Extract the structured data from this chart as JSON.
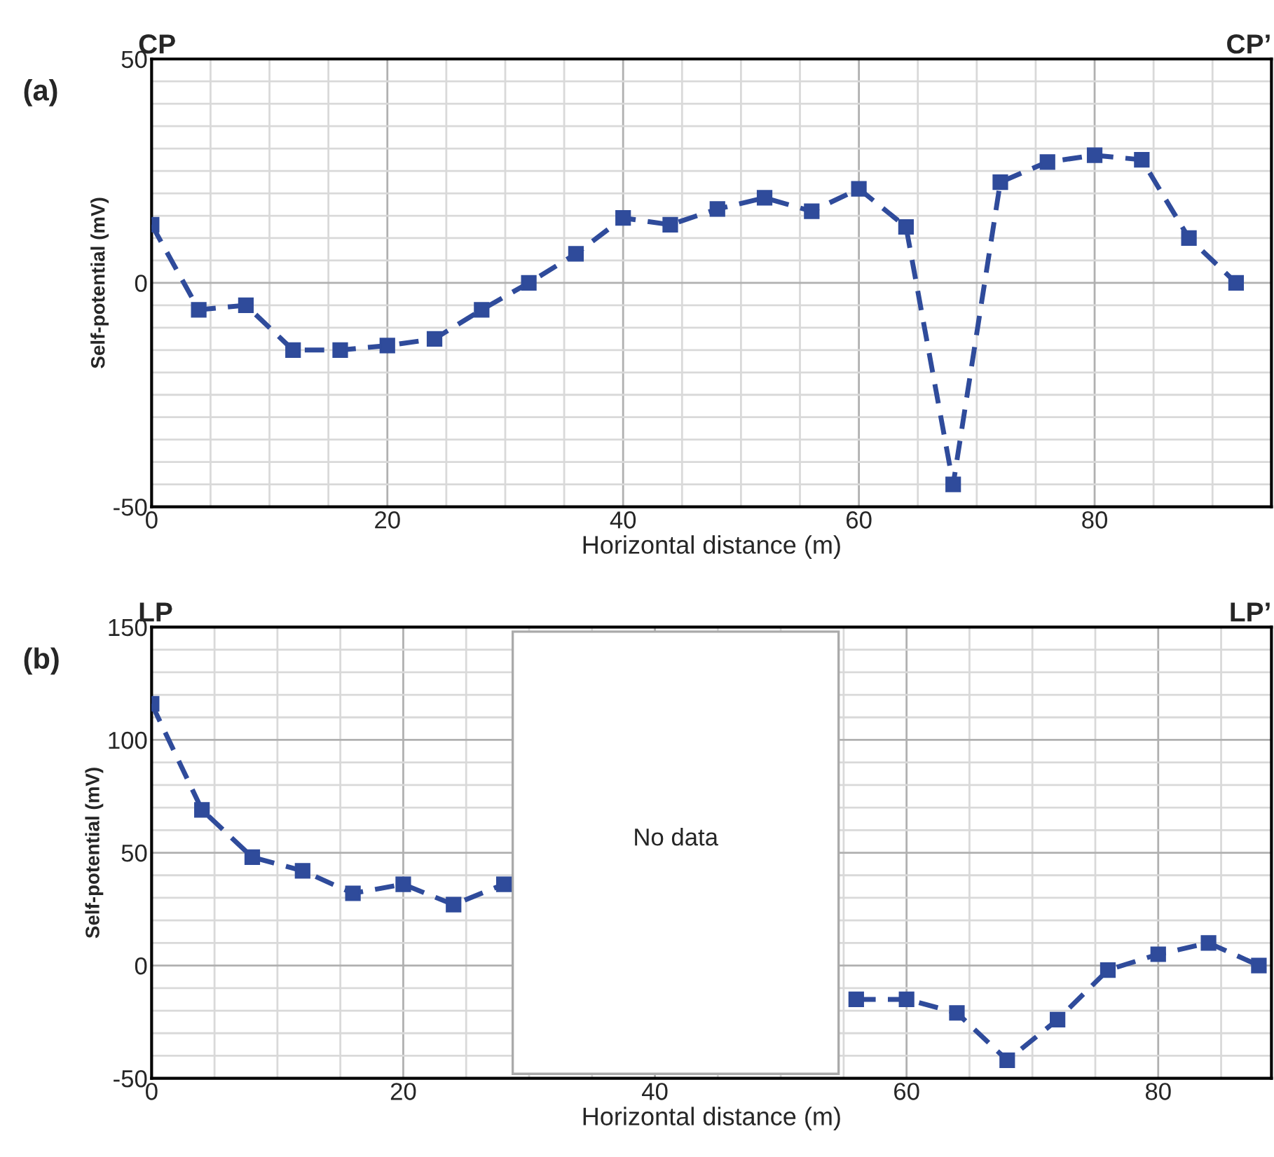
{
  "chart_data": [
    {
      "type": "line",
      "xlabel": "Horizontal distance (m)",
      "ylabel": "Self-potential (mV)",
      "annotations": [
        "(a)",
        "CP",
        "CP’"
      ],
      "x": [
        0,
        4,
        8,
        12,
        16,
        20,
        24,
        28,
        32,
        36,
        40,
        44,
        48,
        52,
        56,
        60,
        64,
        68,
        72,
        76,
        80,
        84,
        88,
        92
      ],
      "series": [
        {
          "color": "#2f4b9b",
          "values": [
            13,
            -6,
            -5,
            -15,
            -15,
            -14,
            -12.5,
            -6,
            0,
            6.5,
            14.5,
            13,
            16.5,
            19,
            16,
            21,
            12.5,
            -45,
            22.5,
            27,
            28.5,
            27.5,
            10,
            0
          ]
        }
      ],
      "xlim": [
        0,
        95
      ],
      "xticks": [
        0,
        {
          "value": 5,
          "label": null
        },
        {
          "value": 10,
          "label": null
        },
        {
          "value": 15,
          "label": null
        },
        20,
        {
          "value": 25,
          "label": null
        },
        {
          "value": 30,
          "label": null
        },
        {
          "value": 35,
          "label": null
        },
        40,
        {
          "value": 45,
          "label": null
        },
        {
          "value": 50,
          "label": null
        },
        {
          "value": 55,
          "label": null
        },
        60,
        {
          "value": 65,
          "label": null
        },
        {
          "value": 70,
          "label": null
        },
        {
          "value": 75,
          "label": null
        },
        80,
        {
          "value": 85,
          "label": null
        },
        {
          "value": 90,
          "label": null
        }
      ],
      "ylim": [
        -50,
        50
      ],
      "yticks": [
        -50,
        {
          "value": -45,
          "label": null
        },
        {
          "value": -40,
          "label": null
        },
        {
          "value": -35,
          "label": null
        },
        {
          "value": -30,
          "label": null
        },
        {
          "value": -25,
          "label": null
        },
        {
          "value": -20,
          "label": null
        },
        {
          "value": -15,
          "label": null
        },
        {
          "value": -10,
          "label": null
        },
        {
          "value": -5,
          "label": null
        },
        0,
        {
          "value": 5,
          "label": null
        },
        {
          "value": 10,
          "label": null
        },
        {
          "value": 15,
          "label": null
        },
        {
          "value": 20,
          "label": null
        },
        {
          "value": 25,
          "label": null
        },
        {
          "value": 30,
          "label": null
        },
        {
          "value": 35,
          "label": null
        },
        {
          "value": 40,
          "label": null
        },
        {
          "value": 45,
          "label": null
        },
        50
      ],
      "grid": true,
      "marker": "square",
      "line_style": "dashed"
    },
    {
      "type": "line",
      "xlabel": "Horizontal distance (m)",
      "ylabel": "Self-potential (mV)",
      "annotations": [
        "(b)",
        "LP",
        "LP’"
      ],
      "x": [
        0,
        4,
        8,
        12,
        16,
        20,
        24,
        28,
        32,
        36,
        40,
        44,
        48,
        52,
        56,
        60,
        64,
        68,
        72,
        76,
        80,
        84,
        88
      ],
      "series": [
        {
          "color": "#2f4b9b",
          "values": [
            116,
            69,
            48,
            42,
            32,
            36,
            27,
            36,
            null,
            null,
            null,
            null,
            null,
            null,
            -15,
            -15,
            -21,
            -42,
            -24,
            -2,
            5,
            10,
            0
          ]
        }
      ],
      "bands": [
        {
          "axis": "x",
          "from": 28.7,
          "to": 54.6,
          "label": "No data",
          "color": "#ffffff"
        }
      ],
      "xlim": [
        0,
        89
      ],
      "xticks": [
        0,
        {
          "value": 5,
          "label": null
        },
        {
          "value": 10,
          "label": null
        },
        {
          "value": 15,
          "label": null
        },
        20,
        {
          "value": 25,
          "label": null
        },
        {
          "value": 30,
          "label": null
        },
        {
          "value": 35,
          "label": null
        },
        40,
        {
          "value": 45,
          "label": null
        },
        {
          "value": 50,
          "label": null
        },
        {
          "value": 55,
          "label": null
        },
        60,
        {
          "value": 65,
          "label": null
        },
        {
          "value": 70,
          "label": null
        },
        {
          "value": 75,
          "label": null
        },
        80,
        {
          "value": 85,
          "label": null
        }
      ],
      "ylim": [
        -50,
        150
      ],
      "yticks": [
        -50,
        {
          "value": -40,
          "label": null
        },
        {
          "value": -30,
          "label": null
        },
        {
          "value": -20,
          "label": null
        },
        {
          "value": -10,
          "label": null
        },
        0,
        {
          "value": 10,
          "label": null
        },
        {
          "value": 20,
          "label": null
        },
        {
          "value": 30,
          "label": null
        },
        {
          "value": 40,
          "label": null
        },
        50,
        {
          "value": 60,
          "label": null
        },
        {
          "value": 70,
          "label": null
        },
        {
          "value": 80,
          "label": null
        },
        {
          "value": 90,
          "label": null
        },
        100,
        {
          "value": 110,
          "label": null
        },
        {
          "value": 120,
          "label": null
        },
        {
          "value": 130,
          "label": null
        },
        {
          "value": 140,
          "label": null
        },
        150
      ],
      "grid": true,
      "marker": "square",
      "line_style": "dashed"
    }
  ]
}
